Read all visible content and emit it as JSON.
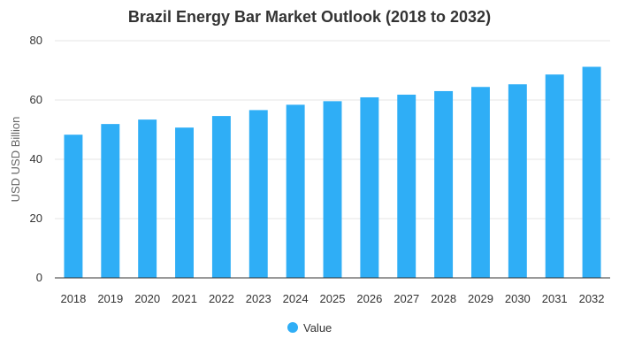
{
  "chart_data": {
    "type": "bar",
    "title": "Brazil Energy Bar Market Outlook (2018 to 2032)",
    "xlabel": "",
    "ylabel": "USD USD Billion",
    "categories": [
      "2018",
      "2019",
      "2020",
      "2021",
      "2022",
      "2023",
      "2024",
      "2025",
      "2026",
      "2027",
      "2028",
      "2029",
      "2030",
      "2031",
      "2032"
    ],
    "series": [
      {
        "name": "Value",
        "values": [
          48.3,
          51.9,
          53.4,
          50.7,
          54.6,
          56.6,
          58.4,
          59.6,
          60.9,
          61.8,
          63.0,
          64.4,
          65.3,
          68.6,
          71.2
        ]
      }
    ],
    "ylim": [
      0,
      80
    ],
    "yticks": [
      0,
      20,
      40,
      60,
      80
    ],
    "grid": true,
    "legend_position": "bottom",
    "bar_color": "#2FAEF6"
  }
}
